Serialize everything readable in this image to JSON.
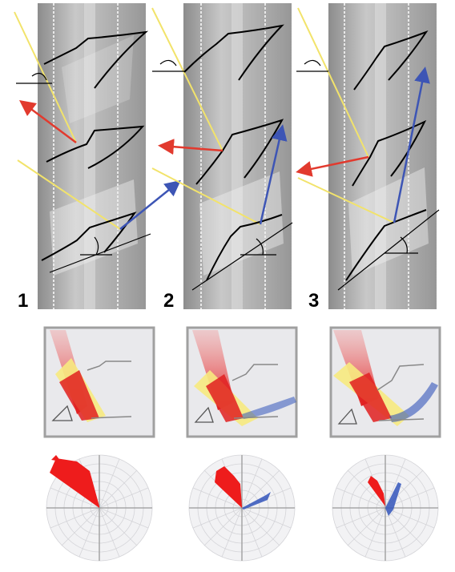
{
  "figure": {
    "panel_labels": [
      "1",
      "2",
      "3"
    ],
    "colors": {
      "photo_background": "#a9a9a9",
      "incident_line": "#f2e36b",
      "reflected_arrow": "#e23a2e",
      "transmitted_arrow": "#3d55b5",
      "prism_outline": "#000000",
      "polar_red": "#ee1c1c",
      "polar_blue": "#3355bb",
      "diagram_frame": "#a0a0a0"
    },
    "icons": [
      "angle-arc-icon",
      "arrow-icon"
    ]
  }
}
